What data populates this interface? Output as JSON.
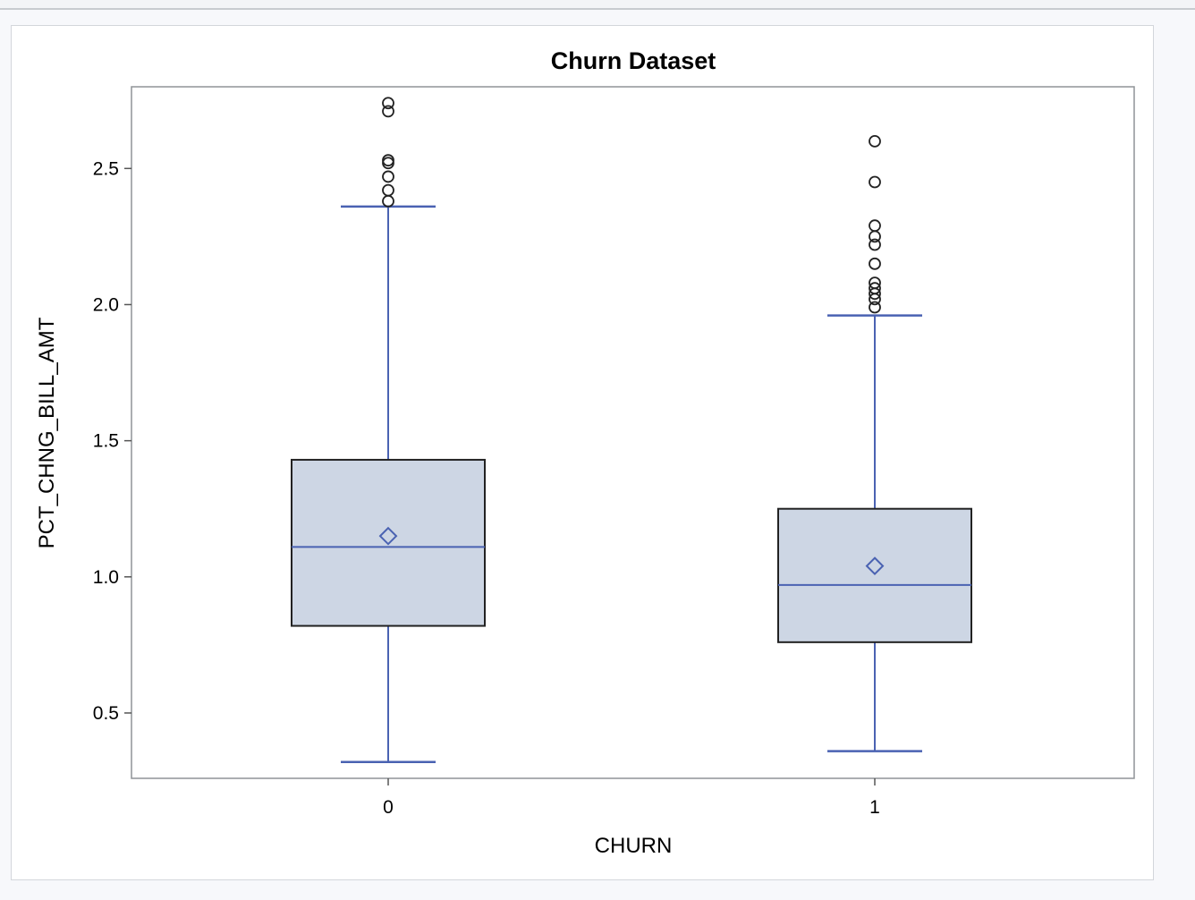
{
  "chart_data": {
    "type": "box",
    "title": "Churn Dataset",
    "xlabel": "CHURN",
    "ylabel": "PCT_CHNG_BILL_AMT",
    "categories": [
      "0",
      "1"
    ],
    "ylim": [
      0.26,
      2.8
    ],
    "yticks": [
      "0.5",
      "1.0",
      "1.5",
      "2.0",
      "2.5"
    ],
    "grid": false,
    "colors": {
      "box_fill": "#cdd6e4",
      "box_edge": "#222222",
      "whisker": "#4a62b2",
      "median": "#4a62b2",
      "mean_marker": "#4a62b2",
      "outlier": "#222222"
    },
    "boxes": [
      {
        "category": "0",
        "whisker_low": 0.32,
        "q1": 0.82,
        "median": 1.11,
        "q3": 1.43,
        "whisker_high": 2.36,
        "mean": 1.15,
        "outliers": [
          2.38,
          2.42,
          2.47,
          2.52,
          2.53,
          2.71,
          2.74
        ]
      },
      {
        "category": "1",
        "whisker_low": 0.36,
        "q1": 0.76,
        "median": 0.97,
        "q3": 1.25,
        "whisker_high": 1.96,
        "mean": 1.04,
        "outliers": [
          1.99,
          2.02,
          2.04,
          2.06,
          2.08,
          2.15,
          2.22,
          2.25,
          2.29,
          2.45,
          2.6
        ]
      }
    ]
  }
}
